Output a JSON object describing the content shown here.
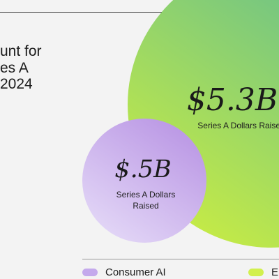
{
  "title_lines": [
    "unt for",
    "es A",
    "2024"
  ],
  "chart_data": {
    "type": "bubble",
    "series": [
      {
        "name": "Consumer AI",
        "value": 0.5,
        "value_label": "$.5B",
        "caption_lines": [
          "Series A Dollars",
          "Raised"
        ],
        "color_start": "#e6dcf8",
        "color_end": "#b995e4"
      },
      {
        "name": "En",
        "value": 5.3,
        "value_label": "$5.3B",
        "caption_lines": [
          "Series A Dollars Raised"
        ],
        "color_start": "#d5f23a",
        "color_end": "#64be8e"
      }
    ],
    "legend": [
      {
        "label": "Consumer AI",
        "color": "#c4a9ec"
      },
      {
        "label": "En",
        "color": "#d2f04e"
      }
    ]
  }
}
